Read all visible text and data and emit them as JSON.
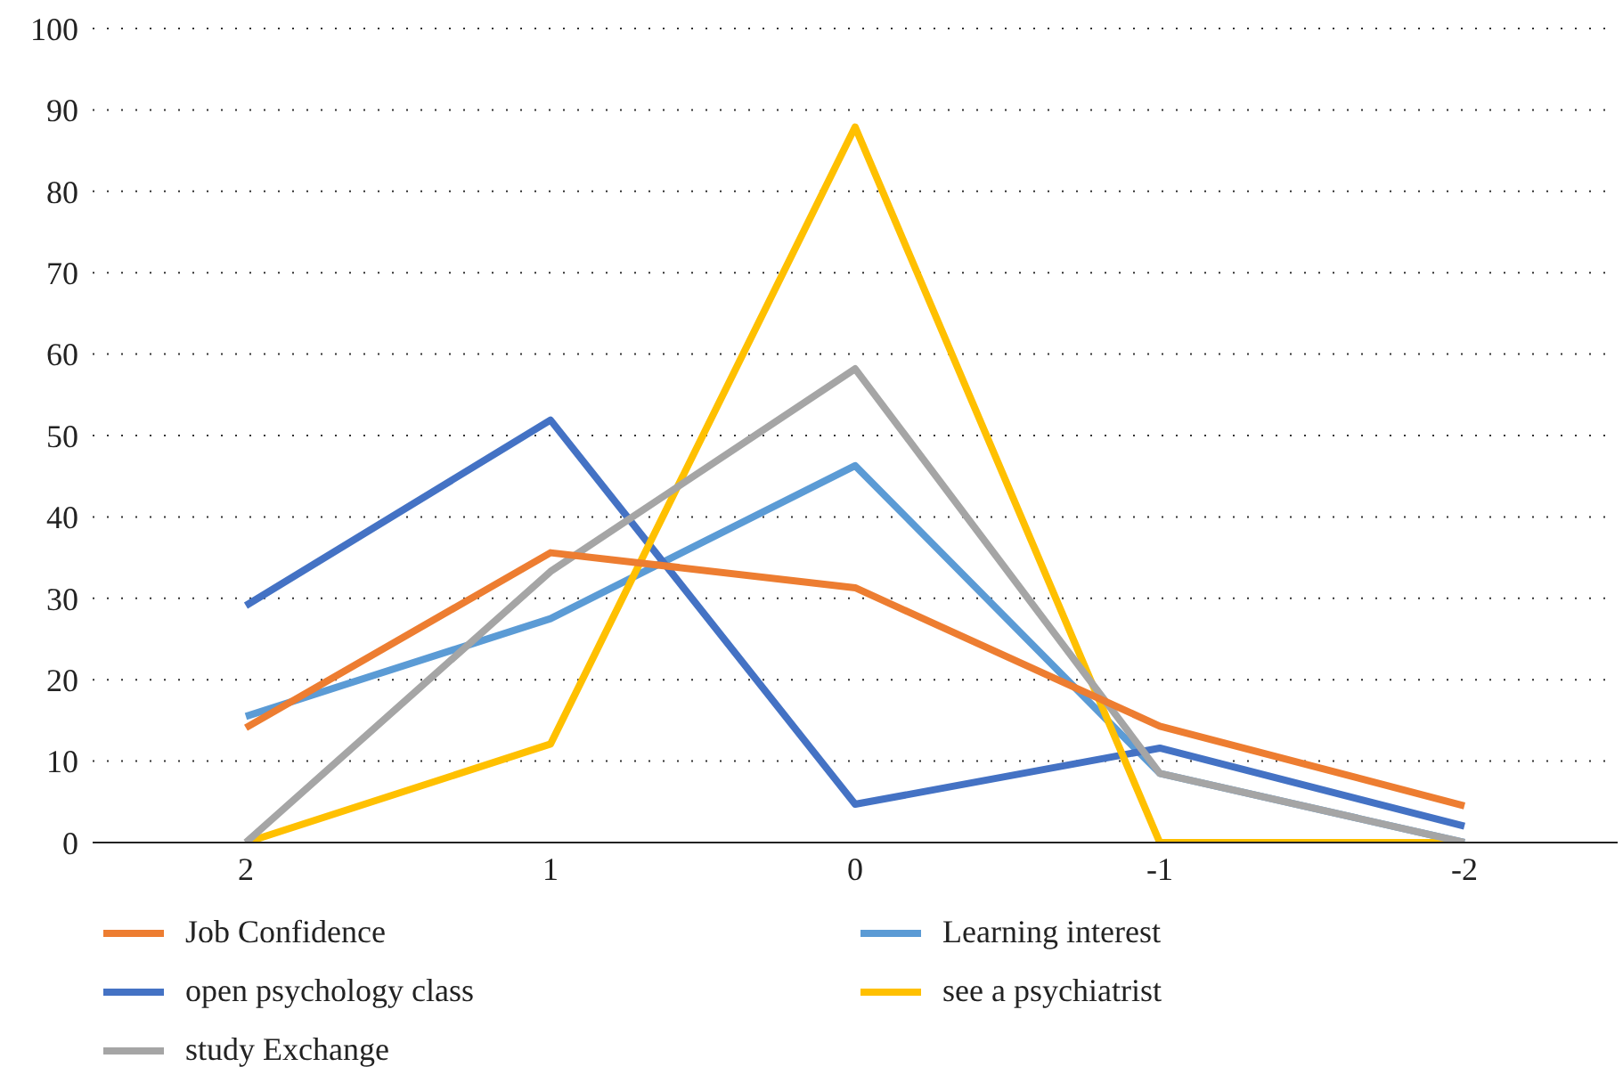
{
  "chart_data": {
    "type": "line",
    "categories": [
      "2",
      "1",
      "0",
      "-1",
      "-2"
    ],
    "series": [
      {
        "name": "Learning interest",
        "color": "#5b9bd5",
        "values": [
          15.5,
          27.5,
          46.3,
          8.5,
          0
        ]
      },
      {
        "name": "open psychology class",
        "color": "#4472c4",
        "values": [
          29.1,
          51.9,
          4.7,
          11.6,
          2
        ]
      },
      {
        "name": "see a psychiatrist",
        "color": "#ffc000",
        "values": [
          0,
          12.1,
          87.9,
          0,
          0
        ]
      },
      {
        "name": "study Exchange",
        "color": "#a5a5a5",
        "values": [
          0,
          33.3,
          58.2,
          8.5,
          0
        ]
      },
      {
        "name": "Job Confidence",
        "color": "#ed7d31",
        "values": [
          14.1,
          35.6,
          31.3,
          14.3,
          4.5
        ]
      }
    ],
    "ylim": [
      0,
      100
    ],
    "yticks": [
      0,
      10,
      20,
      30,
      40,
      50,
      60,
      70,
      80,
      90,
      100
    ],
    "grid": "y",
    "legend": "bottom",
    "marker": "none",
    "line_style": "solid"
  }
}
